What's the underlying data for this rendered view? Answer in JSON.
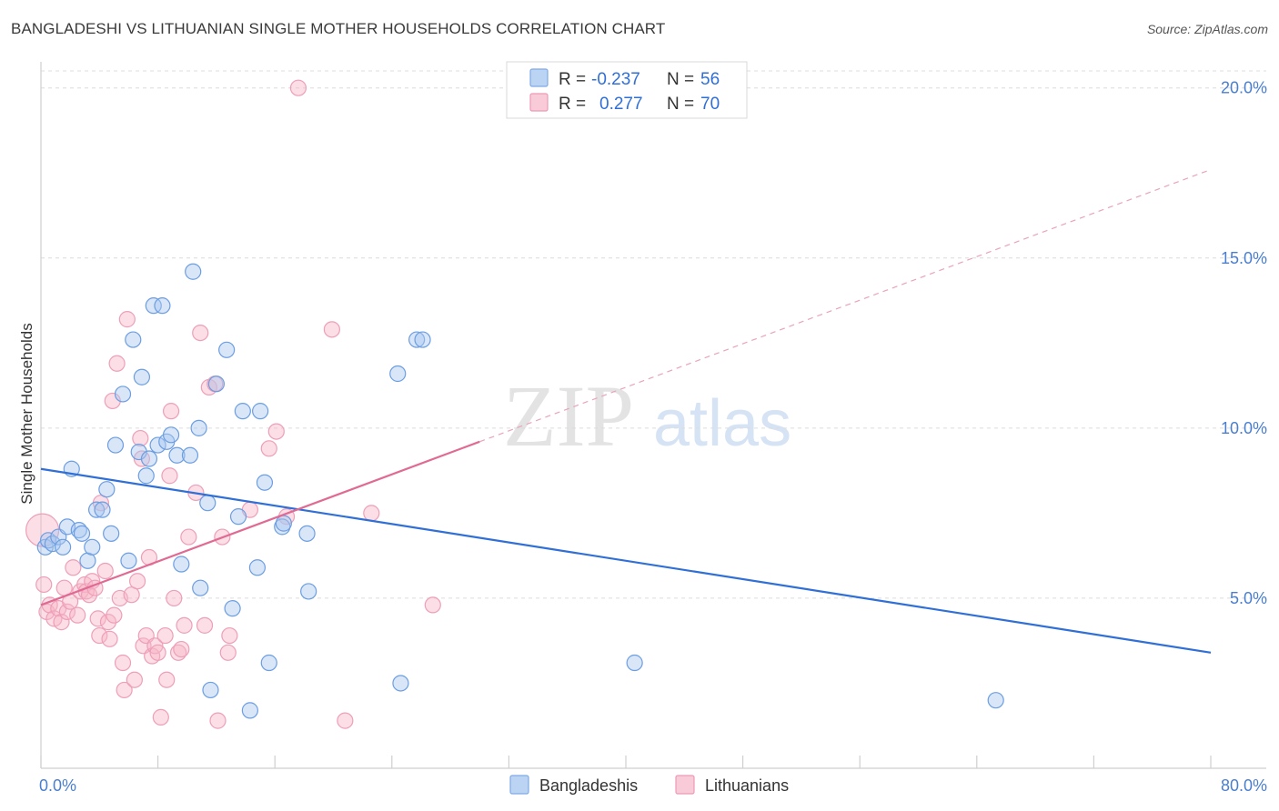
{
  "header": {
    "title": "BANGLADESHI VS LITHUANIAN SINGLE MOTHER HOUSEHOLDS CORRELATION CHART",
    "source": "Source: ZipAtlas.com"
  },
  "watermark": {
    "zip": "ZIP",
    "atlas": "atlas"
  },
  "legend_box": {
    "rows": [
      {
        "r_label": "R =",
        "r_value": "-0.237",
        "n_label": "N =",
        "n_value": "56",
        "color": "#a8c8f0"
      },
      {
        "r_label": "R =",
        "r_value": "0.277",
        "n_label": "N =",
        "n_value": "70",
        "color": "#f6b6c8"
      }
    ]
  },
  "bottom_legend": {
    "series_1": "Bangladeshis",
    "series_2": "Lithuanians"
  },
  "chart_data": {
    "type": "scatter",
    "title": "BANGLADESHI VS LITHUANIAN SINGLE MOTHER HOUSEHOLDS CORRELATION CHART",
    "xlabel": "",
    "ylabel": "Single Mother Households",
    "xlim": [
      0,
      80
    ],
    "ylim": [
      0,
      20.5
    ],
    "x_tick_labels": [
      "0.0%",
      "80.0%"
    ],
    "y_ticks": [
      5,
      10,
      15,
      20
    ],
    "y_tick_labels": [
      "5.0%",
      "10.0%",
      "15.0%",
      "20.0%"
    ],
    "colors": {
      "series_1": "#2f6fd6",
      "series_1_fill": "#a8c8f0",
      "series_2": "#e06a93",
      "series_2_fill": "#f6b6c8"
    },
    "series": [
      {
        "name": "Bangladeshis",
        "R": -0.237,
        "N": 56,
        "trend": {
          "x0": 0,
          "y0": 8.8,
          "x1": 80,
          "y1": 3.4
        },
        "points": [
          [
            0.3,
            6.5
          ],
          [
            0.5,
            6.7
          ],
          [
            0.8,
            6.6
          ],
          [
            1.2,
            6.8
          ],
          [
            1.5,
            6.5
          ],
          [
            1.8,
            7.1
          ],
          [
            2.1,
            8.8
          ],
          [
            2.6,
            7.0
          ],
          [
            2.8,
            6.9
          ],
          [
            3.2,
            6.1
          ],
          [
            3.5,
            6.5
          ],
          [
            3.8,
            7.6
          ],
          [
            4.2,
            7.6
          ],
          [
            4.5,
            8.2
          ],
          [
            4.8,
            6.9
          ],
          [
            5.1,
            9.5
          ],
          [
            5.6,
            11.0
          ],
          [
            6.0,
            6.1
          ],
          [
            6.3,
            12.6
          ],
          [
            6.7,
            9.3
          ],
          [
            6.9,
            11.5
          ],
          [
            7.2,
            8.6
          ],
          [
            7.4,
            9.1
          ],
          [
            7.7,
            13.6
          ],
          [
            8.0,
            9.5
          ],
          [
            8.3,
            13.6
          ],
          [
            8.6,
            9.6
          ],
          [
            8.9,
            9.8
          ],
          [
            9.3,
            9.2
          ],
          [
            9.6,
            6.0
          ],
          [
            10.2,
            9.2
          ],
          [
            10.4,
            14.6
          ],
          [
            10.8,
            10.0
          ],
          [
            10.9,
            5.3
          ],
          [
            11.4,
            7.8
          ],
          [
            11.6,
            2.3
          ],
          [
            12.0,
            11.3
          ],
          [
            12.7,
            12.3
          ],
          [
            13.1,
            4.7
          ],
          [
            13.5,
            7.4
          ],
          [
            13.8,
            10.5
          ],
          [
            14.3,
            1.7
          ],
          [
            14.8,
            5.9
          ],
          [
            15.0,
            10.5
          ],
          [
            15.3,
            8.4
          ],
          [
            15.6,
            3.1
          ],
          [
            16.5,
            7.1
          ],
          [
            16.6,
            7.2
          ],
          [
            18.2,
            6.9
          ],
          [
            18.3,
            5.2
          ],
          [
            24.4,
            11.6
          ],
          [
            24.6,
            2.5
          ],
          [
            25.7,
            12.6
          ],
          [
            26.1,
            12.6
          ],
          [
            40.6,
            3.1
          ],
          [
            65.3,
            2.0
          ]
        ]
      },
      {
        "name": "Lithuanians",
        "R": 0.277,
        "N": 70,
        "trend": {
          "x0": 0,
          "y0": 4.8,
          "x1": 30,
          "y1": 9.6,
          "x1_dashed": 80,
          "y1_dashed": 17.6
        },
        "points": [
          [
            0.2,
            5.4
          ],
          [
            0.4,
            4.6
          ],
          [
            0.6,
            4.8
          ],
          [
            0.9,
            4.4
          ],
          [
            1.2,
            4.7
          ],
          [
            1.4,
            4.3
          ],
          [
            1.6,
            5.3
          ],
          [
            1.8,
            4.6
          ],
          [
            2.0,
            4.9
          ],
          [
            2.2,
            5.9
          ],
          [
            2.5,
            4.5
          ],
          [
            2.7,
            5.2
          ],
          [
            3.0,
            5.4
          ],
          [
            3.1,
            5.2
          ],
          [
            3.3,
            5.1
          ],
          [
            3.5,
            5.5
          ],
          [
            3.7,
            5.3
          ],
          [
            3.9,
            4.4
          ],
          [
            4.0,
            3.9
          ],
          [
            4.1,
            7.8
          ],
          [
            4.4,
            5.8
          ],
          [
            4.6,
            4.3
          ],
          [
            4.7,
            3.8
          ],
          [
            4.9,
            10.8
          ],
          [
            5.0,
            4.5
          ],
          [
            5.2,
            11.9
          ],
          [
            5.4,
            5.0
          ],
          [
            5.6,
            3.1
          ],
          [
            5.7,
            2.3
          ],
          [
            5.9,
            13.2
          ],
          [
            6.2,
            5.1
          ],
          [
            6.4,
            2.6
          ],
          [
            6.6,
            5.5
          ],
          [
            6.8,
            9.7
          ],
          [
            7.0,
            3.6
          ],
          [
            7.2,
            3.9
          ],
          [
            7.4,
            6.2
          ],
          [
            7.6,
            3.3
          ],
          [
            7.8,
            3.6
          ],
          [
            8.0,
            3.4
          ],
          [
            8.2,
            1.5
          ],
          [
            8.5,
            3.9
          ],
          [
            8.6,
            2.6
          ],
          [
            8.8,
            8.6
          ],
          [
            8.9,
            10.5
          ],
          [
            9.1,
            5.0
          ],
          [
            9.4,
            3.4
          ],
          [
            9.6,
            3.5
          ],
          [
            9.8,
            4.2
          ],
          [
            10.1,
            6.8
          ],
          [
            10.6,
            8.1
          ],
          [
            10.9,
            12.8
          ],
          [
            11.2,
            4.2
          ],
          [
            11.5,
            11.2
          ],
          [
            11.9,
            11.3
          ],
          [
            12.1,
            1.4
          ],
          [
            12.4,
            6.8
          ],
          [
            12.8,
            3.4
          ],
          [
            12.9,
            3.9
          ],
          [
            14.3,
            7.6
          ],
          [
            15.6,
            9.4
          ],
          [
            16.1,
            9.9
          ],
          [
            16.8,
            7.4
          ],
          [
            17.6,
            20.0
          ],
          [
            19.9,
            12.9
          ],
          [
            20.8,
            1.4
          ],
          [
            22.6,
            7.5
          ],
          [
            26.8,
            4.8
          ],
          [
            0.1,
            7.0
          ],
          [
            6.9,
            9.1
          ]
        ]
      }
    ]
  }
}
